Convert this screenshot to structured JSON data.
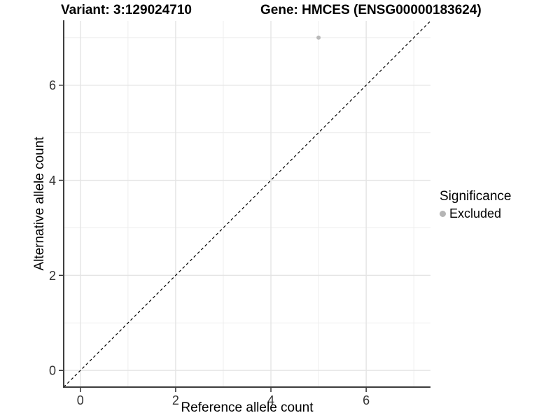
{
  "titles": {
    "left": "Variant: 3:129024710",
    "right": "Gene: HMCES (ENSG00000183624)"
  },
  "chart_data": {
    "type": "scatter",
    "title_left": "Variant: 3:129024710",
    "title_right": "Gene: HMCES (ENSG00000183624)",
    "xlabel": "Reference allele count",
    "ylabel": "Alternative allele count",
    "xlim": [
      -0.35,
      7.35
    ],
    "ylim": [
      -0.35,
      7.35
    ],
    "x_major_ticks": [
      0,
      2,
      4,
      6
    ],
    "y_major_ticks": [
      0,
      2,
      4,
      6
    ],
    "x_minor_gridlines": [
      1,
      3,
      5,
      7
    ],
    "y_minor_gridlines": [
      1,
      3,
      5,
      7
    ],
    "grid": true,
    "reference_line": {
      "kind": "diagonal",
      "equation": "y = x",
      "style": "dashed",
      "color": "#000000"
    },
    "series": [
      {
        "name": "Excluded",
        "color": "#b9b9b9",
        "points": [
          {
            "x": 5,
            "y": 7
          }
        ]
      }
    ],
    "legend": {
      "title": "Significance",
      "position": "right",
      "items": [
        {
          "label": "Excluded",
          "color": "#b5b5b5",
          "marker": "circle-icon"
        }
      ]
    }
  },
  "colors": {
    "background": "#ffffff",
    "grid_major": "#e4e4e4",
    "grid_minor": "#ececec",
    "axis_line": "#3d3d3d",
    "tick_mark": "#333333",
    "tick_label": "#333333",
    "title_text": "#000000",
    "point": "#b9b9b9"
  }
}
